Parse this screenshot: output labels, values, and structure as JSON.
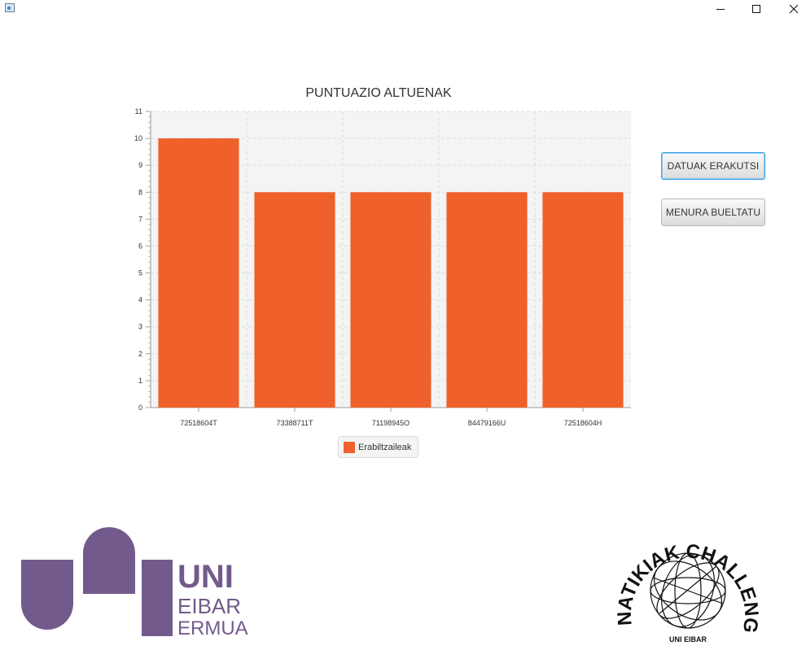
{
  "window": {
    "icon": "java-app-icon",
    "controls": [
      "minimize-icon",
      "maximize-icon",
      "close-icon"
    ]
  },
  "buttons": {
    "show_data": "DATUAK ERAKUTSI",
    "back_to_menu": "MENURA BUELTATU"
  },
  "chart_data": {
    "type": "bar",
    "title": "PUNTUAZIO ALTUENAK",
    "categories": [
      "72518604T",
      "73388711T",
      "71198945O",
      "84479166U",
      "72518604H"
    ],
    "series": [
      {
        "name": "Erabiltzaileak",
        "values": [
          10,
          8,
          8,
          8,
          8
        ],
        "color": "#f0602a"
      }
    ],
    "xlabel": "",
    "ylabel": "",
    "ylim": [
      0,
      11
    ],
    "yticks": [
      0,
      1,
      2,
      3,
      4,
      5,
      6,
      7,
      8,
      9,
      10,
      11
    ],
    "grid": true,
    "legend": "bottom-center"
  },
  "logos": {
    "left": {
      "lines": [
        "UNI",
        "EIBAR",
        "ERMUA"
      ],
      "color": "#735a8c"
    },
    "right": {
      "arc_text": "NATIKIAK CHALLENGE",
      "bottom_text": "UNI EIBAR"
    }
  },
  "colors": {
    "bar": "#f0602a",
    "plot_background": "#f4f4f4",
    "focus": "#3aa3e3",
    "logo_purple": "#735a8c"
  }
}
